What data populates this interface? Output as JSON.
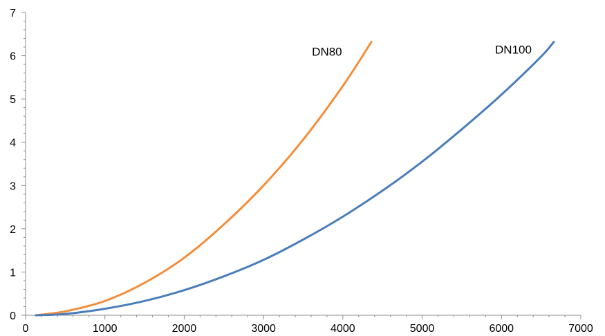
{
  "chart_data": {
    "type": "line",
    "title": "",
    "xlabel": "",
    "ylabel": "",
    "xlim": [
      0,
      7000
    ],
    "ylim": [
      0,
      7
    ],
    "x_ticks": [
      0,
      1000,
      2000,
      3000,
      4000,
      5000,
      6000,
      7000
    ],
    "y_ticks": [
      0,
      1,
      2,
      3,
      4,
      5,
      6,
      7
    ],
    "x_tick_labels": [
      "0",
      "1000",
      "2000",
      "3000",
      "4000",
      "5000",
      "6000",
      "7000"
    ],
    "y_tick_labels": [
      "0",
      "1",
      "2",
      "3",
      "4",
      "5",
      "6",
      "7"
    ],
    "grid": false,
    "legend": "none",
    "series": [
      {
        "name": "DN80",
        "color": "#F28E3B",
        "label_at": [
          3800,
          6.0
        ],
        "x": [
          130,
          500,
          1000,
          1500,
          2000,
          2500,
          3000,
          3500,
          4000,
          4360
        ],
        "y": [
          0.0,
          0.09,
          0.33,
          0.75,
          1.33,
          2.1,
          3.0,
          4.06,
          5.3,
          6.32
        ]
      },
      {
        "name": "DN100",
        "color": "#4A7EBB",
        "label_at": [
          6150,
          6.05
        ],
        "x": [
          130,
          500,
          1000,
          1500,
          2000,
          2500,
          3000,
          3500,
          4000,
          4500,
          5000,
          5500,
          6000,
          6500,
          6660
        ],
        "y": [
          0.0,
          0.03,
          0.15,
          0.33,
          0.58,
          0.9,
          1.28,
          1.75,
          2.28,
          2.88,
          3.55,
          4.3,
          5.1,
          5.98,
          6.32
        ]
      }
    ]
  }
}
